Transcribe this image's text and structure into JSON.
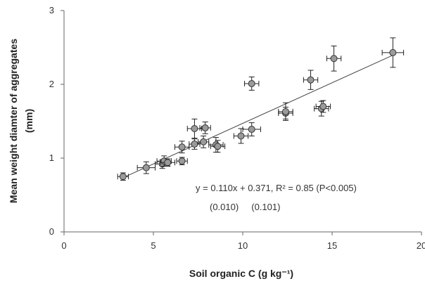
{
  "chart_data": {
    "type": "scatter",
    "xlabel": "Soil organic C (g kg⁻¹)",
    "ylabel_line1": "Mean weight diamter of aggregates",
    "ylabel_line2": "(mm)",
    "xlim": [
      0,
      20
    ],
    "ylim": [
      0,
      3
    ],
    "xticks": [
      0,
      5,
      10,
      15,
      20
    ],
    "yticks": [
      0,
      1,
      2,
      3
    ],
    "grid": false,
    "colors": {
      "marker_fill": "#9a9a9a",
      "marker_stroke": "#333333",
      "trend_line": "#444444",
      "axis": "#666666"
    },
    "points": [
      {
        "x": 3.3,
        "y": 0.75,
        "xerr": 0.3,
        "yerr": 0.05
      },
      {
        "x": 4.6,
        "y": 0.87,
        "xerr": 0.5,
        "yerr": 0.08
      },
      {
        "x": 5.5,
        "y": 0.92,
        "xerr": 0.4,
        "yerr": 0.06
      },
      {
        "x": 5.6,
        "y": 0.96,
        "xerr": 0.4,
        "yerr": 0.07
      },
      {
        "x": 5.8,
        "y": 0.94,
        "xerr": 0.4,
        "yerr": 0.05
      },
      {
        "x": 6.6,
        "y": 0.96,
        "xerr": 0.3,
        "yerr": 0.05
      },
      {
        "x": 6.6,
        "y": 1.15,
        "xerr": 0.4,
        "yerr": 0.08
      },
      {
        "x": 7.3,
        "y": 1.4,
        "xerr": 0.4,
        "yerr": 0.13
      },
      {
        "x": 7.3,
        "y": 1.19,
        "xerr": 0.3,
        "yerr": 0.07
      },
      {
        "x": 7.8,
        "y": 1.22,
        "xerr": 0.3,
        "yerr": 0.08
      },
      {
        "x": 7.9,
        "y": 1.41,
        "xerr": 0.3,
        "yerr": 0.08
      },
      {
        "x": 8.5,
        "y": 1.18,
        "xerr": 0.4,
        "yerr": 0.1
      },
      {
        "x": 8.6,
        "y": 1.16,
        "xerr": 0.4,
        "yerr": 0.08
      },
      {
        "x": 9.9,
        "y": 1.3,
        "xerr": 0.4,
        "yerr": 0.1
      },
      {
        "x": 10.5,
        "y": 1.39,
        "xerr": 0.5,
        "yerr": 0.09
      },
      {
        "x": 10.5,
        "y": 2.01,
        "xerr": 0.4,
        "yerr": 0.09
      },
      {
        "x": 12.4,
        "y": 1.61,
        "xerr": 0.4,
        "yerr": 0.08
      },
      {
        "x": 12.4,
        "y": 1.63,
        "xerr": 0.4,
        "yerr": 0.12
      },
      {
        "x": 13.8,
        "y": 2.06,
        "xerr": 0.4,
        "yerr": 0.13
      },
      {
        "x": 14.4,
        "y": 1.67,
        "xerr": 0.4,
        "yerr": 0.1
      },
      {
        "x": 14.5,
        "y": 1.7,
        "xerr": 0.4,
        "yerr": 0.08
      },
      {
        "x": 15.1,
        "y": 2.35,
        "xerr": 0.4,
        "yerr": 0.17
      },
      {
        "x": 18.4,
        "y": 2.43,
        "xerr": 0.6,
        "yerr": 0.2
      }
    ],
    "trendline": {
      "slope": 0.11,
      "intercept": 0.371,
      "x_range": [
        3.3,
        18.4
      ]
    },
    "annotation_line1": "y = 0.110x + 0.371, R² = 0.85 (P<0.005)",
    "annotation_line2": "(0.010)     (0.101)"
  }
}
